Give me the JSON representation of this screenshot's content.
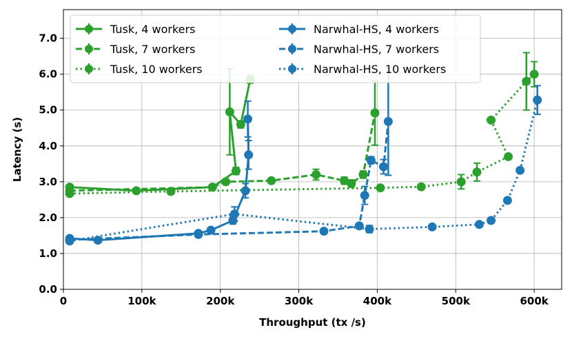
{
  "chart_data": {
    "type": "line",
    "xlabel": "Throughput (tx /s)",
    "ylabel": "Latency (s)",
    "xlim": [
      0,
      635000
    ],
    "ylim": [
      0,
      7.8
    ],
    "x_ticks": [
      0,
      100000,
      200000,
      300000,
      400000,
      500000,
      600000
    ],
    "x_tick_labels": [
      "0",
      "100k",
      "200k",
      "300k",
      "400k",
      "500k",
      "600k"
    ],
    "y_ticks": [
      0,
      1,
      2,
      3,
      4,
      5,
      6,
      7
    ],
    "y_tick_labels": [
      "0.0",
      "1.0",
      "2.0",
      "3.0",
      "4.0",
      "5.0",
      "6.0",
      "7.0"
    ],
    "grid": true,
    "legend_position": "top-left",
    "colors": {
      "green": "#2ca02c",
      "blue": "#1f77b4"
    },
    "series": [
      {
        "name": "Tusk, 4 workers",
        "color": "#2ca02c",
        "dash": "solid",
        "points": [
          {
            "x": 8000,
            "y": 2.85,
            "err": 0.05
          },
          {
            "x": 93000,
            "y": 2.75,
            "err": 0.05
          },
          {
            "x": 190000,
            "y": 2.85,
            "err": 0.05
          },
          {
            "x": 220000,
            "y": 3.3,
            "err": 0.1
          },
          {
            "x": 212000,
            "y": 4.95,
            "err": 1.2
          },
          {
            "x": 226000,
            "y": 4.6,
            "err": 0.1
          },
          {
            "x": 238000,
            "y": 5.85,
            "err": 0.1
          }
        ]
      },
      {
        "name": "Tusk, 7 workers",
        "color": "#2ca02c",
        "dash": "dashed",
        "points": [
          {
            "x": 8000,
            "y": 2.75,
            "err": 0.05
          },
          {
            "x": 190000,
            "y": 2.85,
            "err": 0.05
          },
          {
            "x": 207000,
            "y": 3.0,
            "err": 0.05
          },
          {
            "x": 265000,
            "y": 3.03,
            "err": 0.05
          },
          {
            "x": 322000,
            "y": 3.2,
            "err": 0.15
          },
          {
            "x": 358000,
            "y": 3.03,
            "err": 0.1
          },
          {
            "x": 367000,
            "y": 2.95,
            "err": 0.1
          },
          {
            "x": 382000,
            "y": 3.2,
            "err": 0.1
          },
          {
            "x": 397000,
            "y": 4.92,
            "err": 0.9
          }
        ]
      },
      {
        "name": "Tusk, 10 workers",
        "color": "#2ca02c",
        "dash": "dotted",
        "points": [
          {
            "x": 8000,
            "y": 2.67,
            "err": 0.05
          },
          {
            "x": 137000,
            "y": 2.73,
            "err": 0.05
          },
          {
            "x": 404000,
            "y": 2.83,
            "err": 0.05
          },
          {
            "x": 456000,
            "y": 2.86,
            "err": 0.05
          },
          {
            "x": 507000,
            "y": 3.0,
            "err": 0.2
          },
          {
            "x": 527000,
            "y": 3.27,
            "err": 0.25
          },
          {
            "x": 567000,
            "y": 3.7,
            "err": 0.05
          },
          {
            "x": 545000,
            "y": 4.72,
            "err": 0.05
          },
          {
            "x": 590000,
            "y": 5.8,
            "err": 0.8
          },
          {
            "x": 600000,
            "y": 6.0,
            "err": 0.35
          }
        ]
      },
      {
        "name": "Narwhal-HS, 4 workers",
        "color": "#1f77b4",
        "dash": "solid",
        "points": [
          {
            "x": 8000,
            "y": 1.42,
            "err": 0.05
          },
          {
            "x": 44000,
            "y": 1.37,
            "err": 0.05
          },
          {
            "x": 172000,
            "y": 1.56,
            "err": 0.05
          },
          {
            "x": 188000,
            "y": 1.65,
            "err": 0.05
          },
          {
            "x": 216000,
            "y": 1.92,
            "err": 0.1
          },
          {
            "x": 232000,
            "y": 2.75,
            "err": 0.2
          },
          {
            "x": 236000,
            "y": 3.75,
            "err": 0.4
          },
          {
            "x": 235000,
            "y": 4.75,
            "err": 0.5
          }
        ]
      },
      {
        "name": "Narwhal-HS, 7 workers",
        "color": "#1f77b4",
        "dash": "dashed",
        "points": [
          {
            "x": 8000,
            "y": 1.38,
            "err": 0.05
          },
          {
            "x": 172000,
            "y": 1.53,
            "err": 0.05
          },
          {
            "x": 332000,
            "y": 1.62,
            "err": 0.05
          },
          {
            "x": 377000,
            "y": 1.77,
            "err": 0.05
          },
          {
            "x": 384000,
            "y": 2.62,
            "err": 0.25
          },
          {
            "x": 392000,
            "y": 3.6,
            "err": 0.1
          },
          {
            "x": 408000,
            "y": 3.42,
            "err": 0.2
          },
          {
            "x": 414000,
            "y": 4.68,
            "err": 1.5
          }
        ]
      },
      {
        "name": "Narwhal-HS, 10 workers",
        "color": "#1f77b4",
        "dash": "dotted",
        "points": [
          {
            "x": 8000,
            "y": 1.35,
            "err": 0.05
          },
          {
            "x": 218000,
            "y": 2.1,
            "err": 0.2
          },
          {
            "x": 390000,
            "y": 1.68,
            "err": 0.1
          },
          {
            "x": 470000,
            "y": 1.74,
            "err": 0.05
          },
          {
            "x": 530000,
            "y": 1.81,
            "err": 0.05
          },
          {
            "x": 545000,
            "y": 1.92,
            "err": 0.05
          },
          {
            "x": 566000,
            "y": 2.48,
            "err": 0.05
          },
          {
            "x": 582000,
            "y": 3.32,
            "err": 0.05
          },
          {
            "x": 604000,
            "y": 5.28,
            "err": 0.4
          }
        ]
      }
    ]
  }
}
